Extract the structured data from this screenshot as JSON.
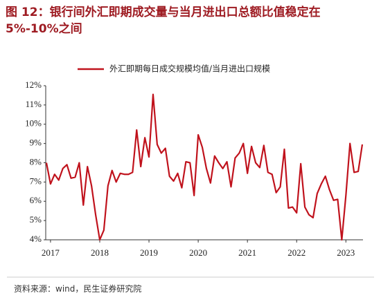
{
  "chart_data": {
    "type": "line",
    "title": "图 12：银行间外汇即期成交量与当月进出口总额比值稳定在 5%-10%之间",
    "source": "资料来源：wind，民生证券研究院",
    "categories": [
      null,
      "2017",
      null,
      null,
      null,
      null,
      null,
      null,
      null,
      null,
      null,
      null,
      null,
      "2018",
      null,
      null,
      null,
      null,
      null,
      null,
      null,
      null,
      null,
      null,
      null,
      "2019",
      null,
      null,
      null,
      null,
      null,
      null,
      null,
      null,
      null,
      null,
      null,
      "2020",
      null,
      null,
      null,
      null,
      null,
      null,
      null,
      null,
      null,
      null,
      null,
      "2021",
      null,
      null,
      null,
      null,
      null,
      null,
      null,
      null,
      null,
      null,
      null,
      "2022",
      null,
      null,
      null,
      null,
      null,
      null,
      null,
      null,
      null,
      null,
      null,
      "2023",
      null,
      null,
      null,
      null
    ],
    "series": [
      {
        "name": "外汇即期每日成交规模均值/当月进出口规模",
        "color": "#c0121c",
        "values": [
          8.0,
          6.9,
          7.4,
          7.1,
          7.7,
          7.9,
          7.2,
          7.25,
          8.0,
          5.8,
          7.8,
          6.8,
          5.3,
          4.0,
          4.5,
          6.8,
          7.6,
          7.0,
          7.45,
          7.4,
          7.4,
          7.5,
          9.7,
          7.8,
          9.3,
          8.3,
          11.55,
          8.95,
          8.5,
          8.75,
          7.3,
          7.05,
          7.45,
          6.7,
          8.05,
          8.0,
          6.3,
          9.45,
          8.8,
          7.7,
          6.95,
          8.35,
          8.0,
          7.7,
          8.05,
          6.75,
          8.25,
          8.5,
          9.0,
          7.45,
          8.85,
          8.0,
          7.75,
          8.9,
          7.5,
          7.4,
          6.45,
          6.75,
          8.7,
          5.65,
          5.7,
          5.4,
          7.95,
          5.7,
          5.3,
          5.15,
          6.4,
          6.9,
          7.3,
          6.6,
          6.05,
          6.1,
          4.0,
          6.3,
          9.0,
          7.5,
          7.55,
          8.95
        ]
      }
    ],
    "ylim": [
      4,
      12
    ],
    "yticks": [
      {
        "value": 4,
        "label": "4%"
      },
      {
        "value": 5,
        "label": "5%"
      },
      {
        "value": 6,
        "label": "6%"
      },
      {
        "value": 7,
        "label": "7%"
      },
      {
        "value": 8,
        "label": "8%"
      },
      {
        "value": 9,
        "label": "9%"
      },
      {
        "value": 10,
        "label": "10%"
      },
      {
        "value": 11,
        "label": "11%"
      },
      {
        "value": 12,
        "label": "12%"
      }
    ],
    "grid": false,
    "legend": "top"
  }
}
